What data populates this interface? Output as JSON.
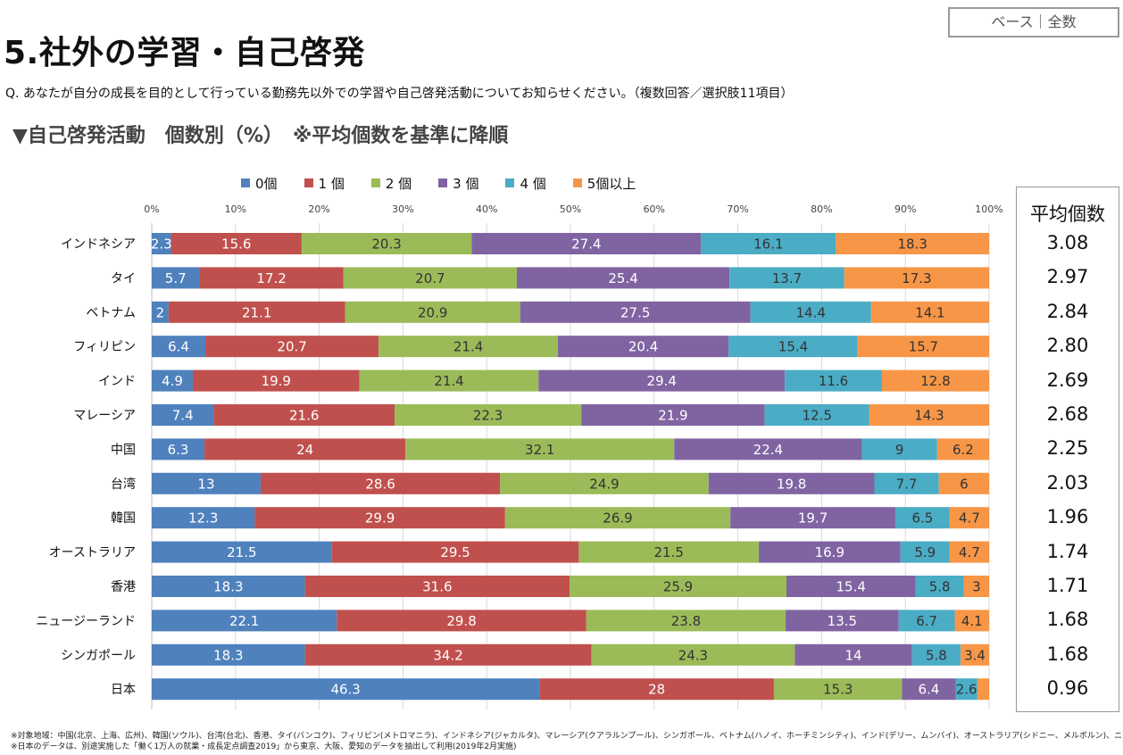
{
  "header": {
    "base_label": "ベース｜全数",
    "title": "5.社外の学習・自己啓発",
    "question": "Q. あなたが自分の成長を目的として行っている勤務先以外での学習や自己啓発活動についてお知らせください。（複数回答／選択肢11項目）",
    "section_heading": "▼自己啓発活動　個数別（%）　※平均個数を基準に降順"
  },
  "avg_header": "平均個数",
  "footnotes": [
    "※対象地域：中国(北京、上海、広州)、韓国(ソウル)、台湾(台北)、香港、タイ(バンコク)、フィリピン(メトロマニラ)、インドネシア(ジャカルタ)、マレーシア(クアラルンプール)、シンガポール、ベトナム(ハノイ、ホーチミンシティ)、インド(デリー、ムンバイ)、オーストラリア(シドニー、メルボルン)、ニュージーランド",
    "※日本のデータは、別途実施した「働く1万人の就業・成長定点調査2019」から東京、大阪、愛知のデータを抽出して利用(2019年2月実施)"
  ],
  "chart_data": {
    "type": "bar",
    "orientation": "horizontal",
    "stacked": true,
    "xlim": [
      0,
      100
    ],
    "x_ticks": [
      "0%",
      "10%",
      "20%",
      "30%",
      "40%",
      "50%",
      "60%",
      "70%",
      "80%",
      "90%",
      "100%"
    ],
    "legend_position": "top",
    "grid": true,
    "categories": [
      "インドネシア",
      "タイ",
      "ベトナム",
      "フィリピン",
      "インド",
      "マレーシア",
      "中国",
      "台湾",
      "韓国",
      "オーストラリア",
      "香港",
      "ニュージーランド",
      "シンガポール",
      "日本"
    ],
    "series": [
      {
        "name": "0個",
        "color": "#4f81bd",
        "values": [
          2.3,
          5.7,
          2,
          6.4,
          4.9,
          7.4,
          6.3,
          13,
          12.3,
          21.5,
          18.3,
          22.1,
          18.3,
          46.3
        ]
      },
      {
        "name": "1 個",
        "color": "#c0504d",
        "values": [
          15.6,
          17.2,
          21.1,
          20.7,
          19.9,
          21.6,
          24,
          28.6,
          29.9,
          29.5,
          31.6,
          29.8,
          34.2,
          28
        ]
      },
      {
        "name": "2 個",
        "color": "#9bbb59",
        "values": [
          20.3,
          20.7,
          20.9,
          21.4,
          21.4,
          22.3,
          32.1,
          24.9,
          26.9,
          21.5,
          25.9,
          23.8,
          24.3,
          15.3
        ]
      },
      {
        "name": "3 個",
        "color": "#8064a2",
        "values": [
          27.4,
          25.4,
          27.5,
          20.4,
          29.4,
          21.9,
          22.4,
          19.8,
          19.7,
          16.9,
          15.4,
          13.5,
          14,
          6.4
        ]
      },
      {
        "name": "4 個",
        "color": "#4bacc6",
        "values": [
          16.1,
          13.7,
          14.4,
          15.4,
          11.6,
          12.5,
          9,
          7.7,
          6.5,
          5.9,
          5.8,
          6.7,
          5.8,
          2.6
        ]
      },
      {
        "name": "5個以上",
        "color": "#f79646",
        "values": [
          18.3,
          17.3,
          14.1,
          15.7,
          12.8,
          14.3,
          6.2,
          6,
          4.7,
          4.7,
          3,
          4.1,
          3.4,
          1.4
        ]
      }
    ],
    "averages": [
      "3.08",
      "2.97",
      "2.84",
      "2.80",
      "2.69",
      "2.68",
      "2.25",
      "2.03",
      "1.96",
      "1.74",
      "1.71",
      "1.68",
      "1.68",
      "0.96"
    ]
  }
}
